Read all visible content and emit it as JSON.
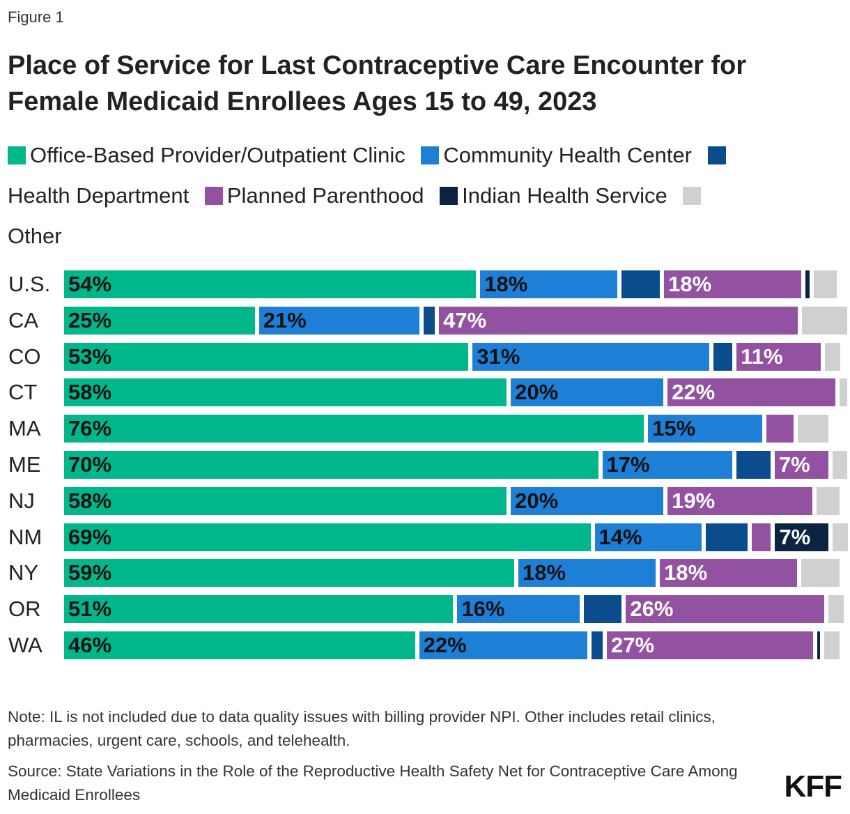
{
  "figure_label": "Figure 1",
  "title": "Place of Service for Last Contraceptive Care Encounter for Female Medicaid Enrollees Ages 15 to 49, 2023",
  "chart_data": {
    "type": "bar",
    "orientation": "horizontal",
    "stacked": true,
    "normalized_percent": true,
    "legend_placement": "top",
    "grid": false,
    "categories": [
      "U.S.",
      "CA",
      "CO",
      "CT",
      "MA",
      "ME",
      "NJ",
      "NM",
      "NY",
      "OR",
      "WA"
    ],
    "series": [
      {
        "name": "Office-Based Provider/Outpatient Clinic",
        "color": "#00b68b",
        "label_color": "#111111",
        "values": [
          54,
          25,
          53,
          58,
          76,
          70,
          58,
          69,
          59,
          51,
          46
        ]
      },
      {
        "name": "Community Health Center",
        "color": "#1d80d6",
        "label_color": "#111111",
        "values": [
          18,
          21,
          31,
          20,
          15,
          17,
          20,
          14,
          18,
          16,
          22
        ]
      },
      {
        "name": "Health Department",
        "color": "#0b4c8c",
        "label_color": "#ffffff",
        "values": [
          5,
          1.5,
          2.5,
          0,
          0,
          4.5,
          0,
          5.5,
          0,
          5,
          1.5
        ]
      },
      {
        "name": "Planned Parenthood",
        "color": "#9351a1",
        "label_color": "#ffffff",
        "values": [
          18,
          47,
          11,
          22,
          3.5,
          7,
          19,
          2.5,
          18,
          26,
          27
        ]
      },
      {
        "name": "Indian Health Service",
        "color": "#0b2442",
        "label_color": "#ffffff",
        "values": [
          0.5,
          0,
          0,
          0,
          0,
          0,
          0,
          7,
          0,
          0,
          0.3
        ]
      },
      {
        "name": "Other",
        "color": "#d0d0d0",
        "label_color": "#111111",
        "values": [
          3,
          6,
          2,
          1,
          4,
          2,
          3,
          2,
          5,
          2,
          2
        ]
      }
    ],
    "data_labels": [
      [
        "54%",
        "18%",
        "",
        "18%",
        "",
        ""
      ],
      [
        "25%",
        "21%",
        "",
        "47%",
        "",
        ""
      ],
      [
        "53%",
        "31%",
        "",
        "11%",
        "",
        ""
      ],
      [
        "58%",
        "20%",
        "",
        "22%",
        "",
        ""
      ],
      [
        "76%",
        "15%",
        "",
        "",
        "",
        ""
      ],
      [
        "70%",
        "17%",
        "",
        "7%",
        "",
        ""
      ],
      [
        "58%",
        "20%",
        "",
        "19%",
        "",
        ""
      ],
      [
        "69%",
        "14%",
        "",
        "",
        "7%",
        ""
      ],
      [
        "59%",
        "18%",
        "",
        "18%",
        "",
        ""
      ],
      [
        "51%",
        "16%",
        "",
        "26%",
        "",
        ""
      ],
      [
        "46%",
        "22%",
        "",
        "27%",
        "",
        ""
      ]
    ]
  },
  "notes": {
    "note": "Note: IL is not included due to data quality issues with billing provider NPI. Other includes retail clinics, pharmacies, urgent care, schools, and telehealth.",
    "source": "Source: State Variations in the Role of the Reproductive Health Safety Net for Contraceptive Care Among Medicaid Enrollees"
  },
  "logo": "KFF"
}
